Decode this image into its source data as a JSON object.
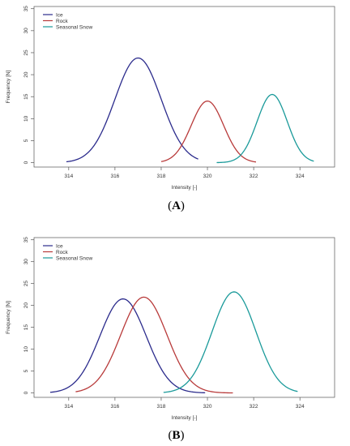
{
  "chart_data": [
    {
      "type": "line",
      "panel_label": "(A)",
      "panel_label_open": "(",
      "panel_label_letter": "A",
      "panel_label_close": ")",
      "xlabel": "Intensity [-]",
      "ylabel": "Frequency [N]",
      "xlim": [
        312.5,
        325.5
      ],
      "ylim": [
        -1,
        35.5
      ],
      "xticks": [
        314,
        316,
        318,
        320,
        322,
        324
      ],
      "yticks": [
        0,
        5,
        10,
        15,
        20,
        25,
        30,
        35
      ],
      "legend_position": "top-left",
      "series": [
        {
          "name": "Ice",
          "color": "#2b2b8c",
          "kind": "gaussian",
          "mean": 317.0,
          "sd": 1.0,
          "peak": 23.8,
          "x_range": [
            313.9,
            319.6
          ]
        },
        {
          "name": "Rock",
          "color": "#b83a3a",
          "kind": "gaussian",
          "mean": 320.0,
          "sd": 0.7,
          "peak": 14.0,
          "x_range": [
            318.0,
            322.1
          ]
        },
        {
          "name": "Seasonal Snow",
          "color": "#1a9a9a",
          "kind": "gaussian",
          "mean": 322.8,
          "sd": 0.65,
          "peak": 15.5,
          "x_range": [
            320.4,
            324.6
          ]
        }
      ]
    },
    {
      "type": "line",
      "panel_label": "(B)",
      "panel_label_open": "(",
      "panel_label_letter": "B",
      "panel_label_close": ")",
      "xlabel": "Intensity [-]",
      "ylabel": "Frequency [N]",
      "xlim": [
        312.5,
        325.5
      ],
      "ylim": [
        -1,
        35.5
      ],
      "xticks": [
        314,
        316,
        318,
        320,
        322,
        324
      ],
      "yticks": [
        0,
        5,
        10,
        15,
        20,
        25,
        30,
        35
      ],
      "legend_position": "top-left",
      "series": [
        {
          "name": "Ice",
          "color": "#2b2b8c",
          "kind": "gaussian",
          "mean": 316.35,
          "sd": 1.0,
          "peak": 21.5,
          "x_range": [
            313.2,
            319.9
          ]
        },
        {
          "name": "Rock",
          "color": "#b83a3a",
          "kind": "gaussian",
          "mean": 317.25,
          "sd": 1.0,
          "peak": 21.9,
          "x_range": [
            314.3,
            321.1
          ]
        },
        {
          "name": "Seasonal Snow",
          "color": "#1a9a9a",
          "kind": "gaussian",
          "mean": 321.15,
          "sd": 0.95,
          "peak": 23.1,
          "x_range": [
            318.1,
            323.9
          ]
        }
      ]
    }
  ]
}
